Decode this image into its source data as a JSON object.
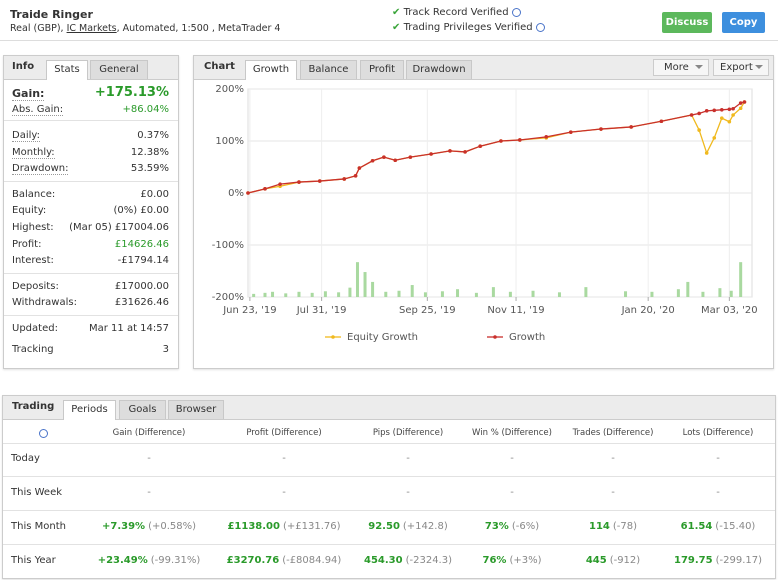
{
  "header": {
    "title": "Traide Ringer",
    "account_prefix": "Real (GBP), ",
    "broker": "IC Markets",
    "account_suffix": ", Automated, 1:500 , MetaTrader 4",
    "verified": [
      "Track Record Verified",
      "Trading Privileges Verified"
    ],
    "buttons": [
      "Discuss",
      "Copy"
    ]
  },
  "info": {
    "label": "Info",
    "tabs": [
      "Stats",
      "General"
    ],
    "groups": [
      [
        [
          "Gain:",
          "+175.13%"
        ],
        [
          "Abs. Gain:",
          "+86.04%"
        ]
      ],
      [
        [
          "Daily:",
          "0.37%"
        ],
        [
          "Monthly:",
          "12.38%"
        ],
        [
          "Drawdown:",
          "53.59%"
        ]
      ],
      [
        [
          "Balance:",
          "£0.00"
        ],
        [
          "Equity:",
          "(0%) £0.00"
        ],
        [
          "Highest:",
          "(Mar 05) £17004.06"
        ],
        [
          "Profit:",
          "£14626.46"
        ],
        [
          "Interest:",
          "-£1794.14"
        ]
      ],
      [
        [
          "Deposits:",
          "£17000.00"
        ],
        [
          "Withdrawals:",
          "£31626.46"
        ]
      ],
      [
        [
          "Updated:",
          "Mar 11 at 14:57"
        ],
        [
          "Tracking",
          "3"
        ]
      ]
    ]
  },
  "chart": {
    "label": "Chart",
    "tabs": [
      "Growth",
      "Balance",
      "Profit",
      "Drawdown"
    ],
    "menus": [
      "More",
      "Export"
    ],
    "chart_data": {
      "type": "line",
      "x": [
        "2019-06-22",
        "2019-07-01",
        "2019-07-09",
        "2019-07-19",
        "2019-07-30",
        "2019-08-12",
        "2019-08-18",
        "2019-08-20",
        "2019-08-27",
        "2019-09-02",
        "2019-09-08",
        "2019-09-16",
        "2019-09-27",
        "2019-10-07",
        "2019-10-15",
        "2019-10-23",
        "2019-11-03",
        "2019-11-13",
        "2019-11-27",
        "2019-12-10",
        "2019-12-26",
        "2020-01-11",
        "2020-01-27",
        "2020-02-12",
        "2020-02-16",
        "2020-02-20",
        "2020-02-24",
        "2020-02-28",
        "2020-03-03",
        "2020-03-05",
        "2020-03-09",
        "2020-03-11"
      ],
      "series": [
        {
          "name": "Equity Growth",
          "color": "#f0b91e",
          "values": [
            0,
            8,
            13,
            21,
            23,
            27,
            33,
            48,
            62,
            69,
            63,
            69,
            75,
            81,
            79,
            90,
            100,
            102,
            106,
            117,
            123,
            127,
            138,
            150,
            121,
            77,
            106,
            144,
            137,
            150,
            163,
            175
          ]
        },
        {
          "name": "Growth",
          "color": "#c9302c",
          "values": [
            0,
            8,
            17,
            21,
            23,
            27,
            33,
            48,
            62,
            69,
            63,
            69,
            75,
            81,
            79,
            90,
            100,
            102,
            108,
            117,
            123,
            127,
            138,
            150,
            153,
            158,
            159,
            160,
            161,
            162,
            173,
            175
          ]
        }
      ],
      "bars": {
        "color": "#a9d9a0",
        "x": [
          "2019-06-25",
          "2019-07-01",
          "2019-07-05",
          "2019-07-12",
          "2019-07-19",
          "2019-07-26",
          "2019-08-02",
          "2019-08-09",
          "2019-08-15",
          "2019-08-19",
          "2019-08-23",
          "2019-08-27",
          "2019-09-03",
          "2019-09-10",
          "2019-09-17",
          "2019-09-24",
          "2019-10-03",
          "2019-10-11",
          "2019-10-21",
          "2019-10-30",
          "2019-11-08",
          "2019-11-20",
          "2019-12-04",
          "2019-12-18",
          "2020-01-08",
          "2020-01-22",
          "2020-02-05",
          "2020-02-10",
          "2020-02-18",
          "2020-02-27",
          "2020-03-04",
          "2020-03-09"
        ],
        "values": [
          -194,
          -192,
          -190,
          -193,
          -190,
          -192,
          -189,
          -191,
          -182,
          -133,
          -152,
          -171,
          -190,
          -188,
          -177,
          -191,
          -189,
          -185,
          -192,
          -181,
          -190,
          -188,
          -191,
          -181,
          -189,
          -190,
          -185,
          -171,
          -190,
          -183,
          -188,
          -133
        ]
      },
      "xlim": [
        "2019-06-22",
        "2020-03-15"
      ],
      "xticks": [
        {
          "value": "2019-06-23",
          "label": "Jun 23, '19"
        },
        {
          "value": "2019-07-31",
          "label": "Jul 31, '19"
        },
        {
          "value": "2019-09-25",
          "label": "Sep 25, '19"
        },
        {
          "value": "2019-11-11",
          "label": "Nov 11, '19"
        },
        {
          "value": "2020-01-20",
          "label": "Jan 20, '20"
        },
        {
          "value": "2020-03-03",
          "label": "Mar 03, '20"
        }
      ],
      "ylim": [
        -200,
        200
      ],
      "yticks": [
        {
          "value": 200,
          "label": "200%"
        },
        {
          "value": 100,
          "label": "100%"
        },
        {
          "value": 0,
          "label": "0%"
        },
        {
          "value": -100,
          "label": "-100%"
        },
        {
          "value": -200,
          "label": "-200%"
        }
      ],
      "grid": true
    }
  },
  "trading": {
    "label": "Trading",
    "tabs": [
      "Periods",
      "Goals",
      "Browser"
    ],
    "columns": [
      "Gain (Difference)",
      "Profit (Difference)",
      "Pips (Difference)",
      "Win % (Difference)",
      "Trades (Difference)",
      "Lots (Difference)"
    ],
    "rows": [
      {
        "period": "Today",
        "cells": [
          [
            "-"
          ],
          [
            "-"
          ],
          [
            "-"
          ],
          [
            "-"
          ],
          [
            "-"
          ],
          [
            "-"
          ]
        ]
      },
      {
        "period": "This Week",
        "cells": [
          [
            "-"
          ],
          [
            "-"
          ],
          [
            "-"
          ],
          [
            "-"
          ],
          [
            "-"
          ],
          [
            "-"
          ]
        ]
      },
      {
        "period": "This Month",
        "cells": [
          [
            "+7.39%",
            "(+0.58%)"
          ],
          [
            "£1138.00",
            "(+£131.76)"
          ],
          [
            "92.50",
            "(+142.8)"
          ],
          [
            "73%",
            "(-6%)"
          ],
          [
            "114",
            "(-78)"
          ],
          [
            "61.54",
            "(-15.40)"
          ]
        ]
      },
      {
        "period": "This Year",
        "cells": [
          [
            "+23.49%",
            "(-99.31%)"
          ],
          [
            "£3270.76",
            "(-£8084.94)"
          ],
          [
            "454.30",
            "(-2324.3)"
          ],
          [
            "76%",
            "(+3%)"
          ],
          [
            "445",
            "(-912)"
          ],
          [
            "179.75",
            "(-299.17)"
          ]
        ]
      }
    ]
  }
}
